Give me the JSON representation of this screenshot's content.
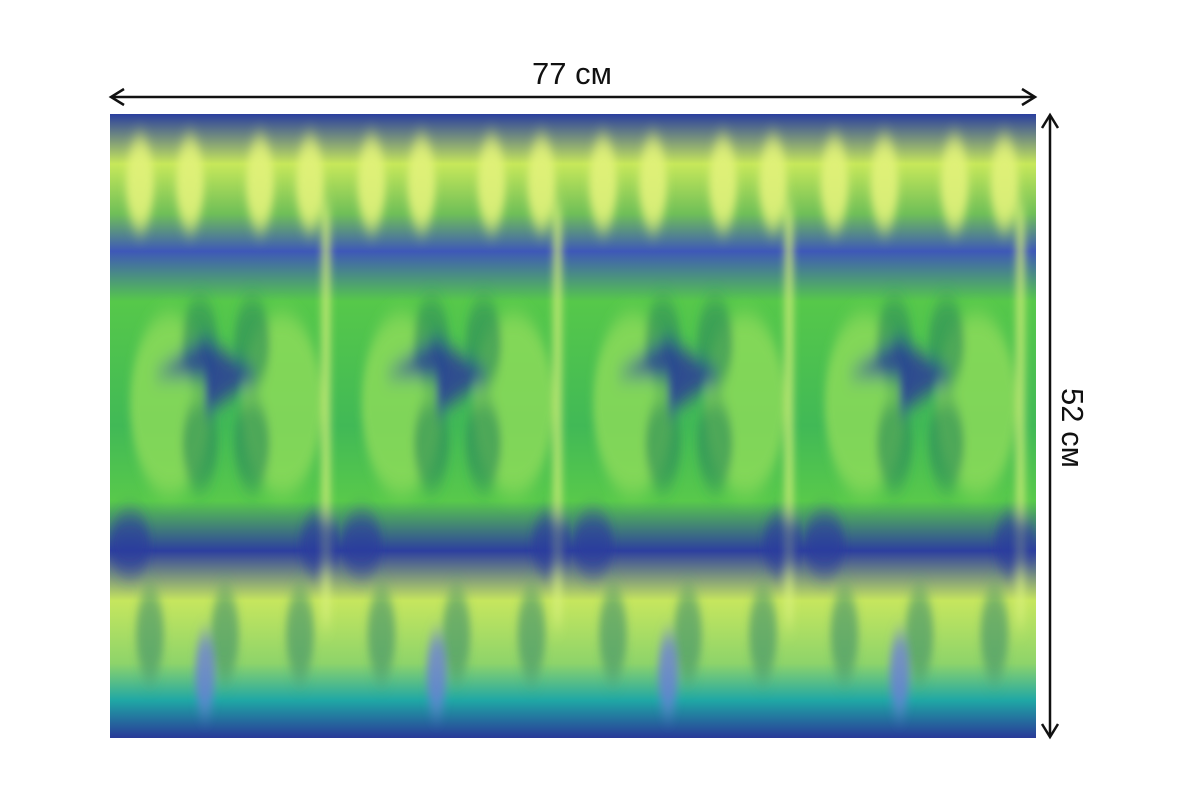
{
  "width_label": "77 см",
  "height_label": "52 см"
}
